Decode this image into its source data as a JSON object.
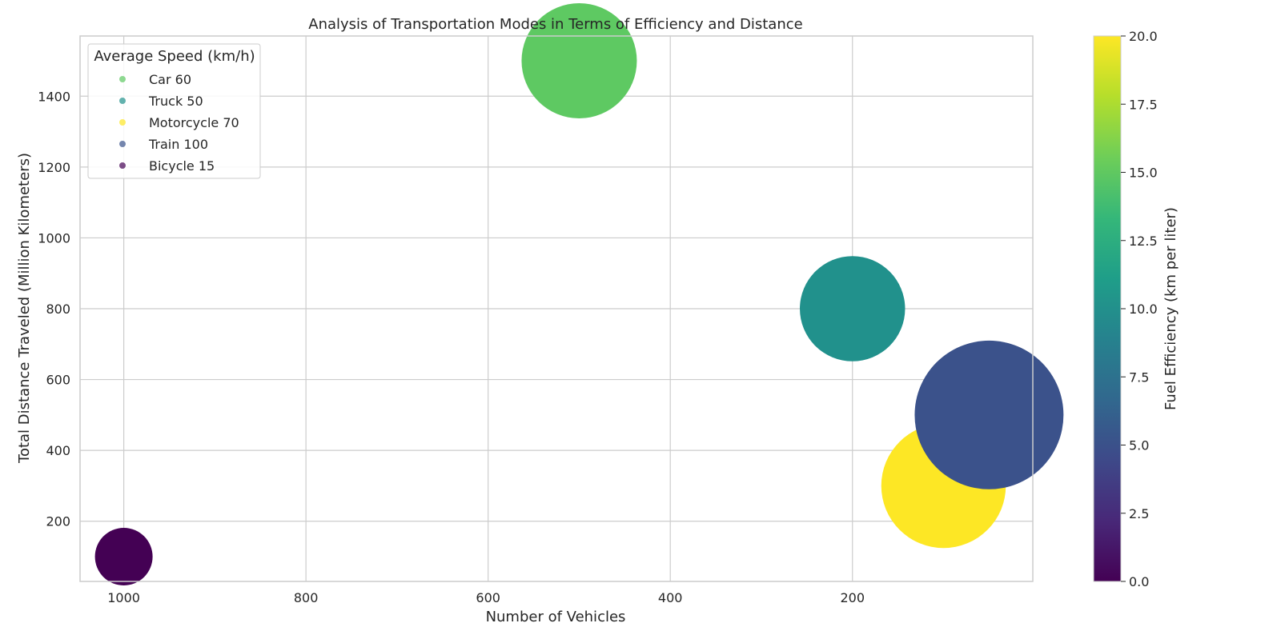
{
  "chart_data": {
    "type": "scatter",
    "title": "Analysis of Transportation Modes in Terms of Efficiency and Distance",
    "xlabel": "Number of Vehicles",
    "ylabel": "Total Distance Traveled (Million Kilometers)",
    "x_inverted": true,
    "xlim": [
      1048,
      2
    ],
    "ylim": [
      30,
      1570
    ],
    "x_ticks": [
      "1000",
      "800",
      "600",
      "400",
      "200"
    ],
    "x_tick_values": [
      1000,
      800,
      600,
      400,
      200
    ],
    "y_ticks": [
      "200",
      "400",
      "600",
      "800",
      "1000",
      "1200",
      "1400"
    ],
    "y_tick_values": [
      200,
      400,
      600,
      800,
      1000,
      1200,
      1400
    ],
    "grid": true,
    "legend": {
      "title": "Average Speed (km/h)",
      "placement": "top-left",
      "entries": [
        "Car 60",
        "Truck 50",
        "Motorcycle 70",
        "Train 100",
        "Bicycle 15"
      ]
    },
    "points": [
      {
        "label": "Car",
        "x": 500,
        "y": 1500,
        "size": 60,
        "color_value": 15,
        "color": "#5ec962"
      },
      {
        "label": "Truck",
        "x": 200,
        "y": 800,
        "size": 50,
        "color_value": 10,
        "color": "#21918c"
      },
      {
        "label": "Motorcycle",
        "x": 100,
        "y": 300,
        "size": 70,
        "color_value": 20,
        "color": "#fde725"
      },
      {
        "label": "Train",
        "x": 50,
        "y": 500,
        "size": 100,
        "color_value": 5,
        "color": "#3b528b"
      },
      {
        "label": "Bicycle",
        "x": 1000,
        "y": 100,
        "size": 15,
        "color_value": 0,
        "color": "#440154"
      }
    ],
    "colorbar": {
      "label": "Fuel Efficiency (km per liter)",
      "colormap": "viridis",
      "range": [
        0,
        20
      ],
      "ticks": [
        "0.0",
        "2.5",
        "5.0",
        "7.5",
        "10.0",
        "12.5",
        "15.0",
        "17.5",
        "20.0"
      ],
      "tick_values": [
        0,
        2.5,
        5,
        7.5,
        10,
        12.5,
        15,
        17.5,
        20
      ],
      "stops": [
        "#440154",
        "#482878",
        "#3e4989",
        "#31688e",
        "#26828e",
        "#1f9e89",
        "#35b779",
        "#6ece58",
        "#b5de2b",
        "#fde725"
      ]
    }
  }
}
